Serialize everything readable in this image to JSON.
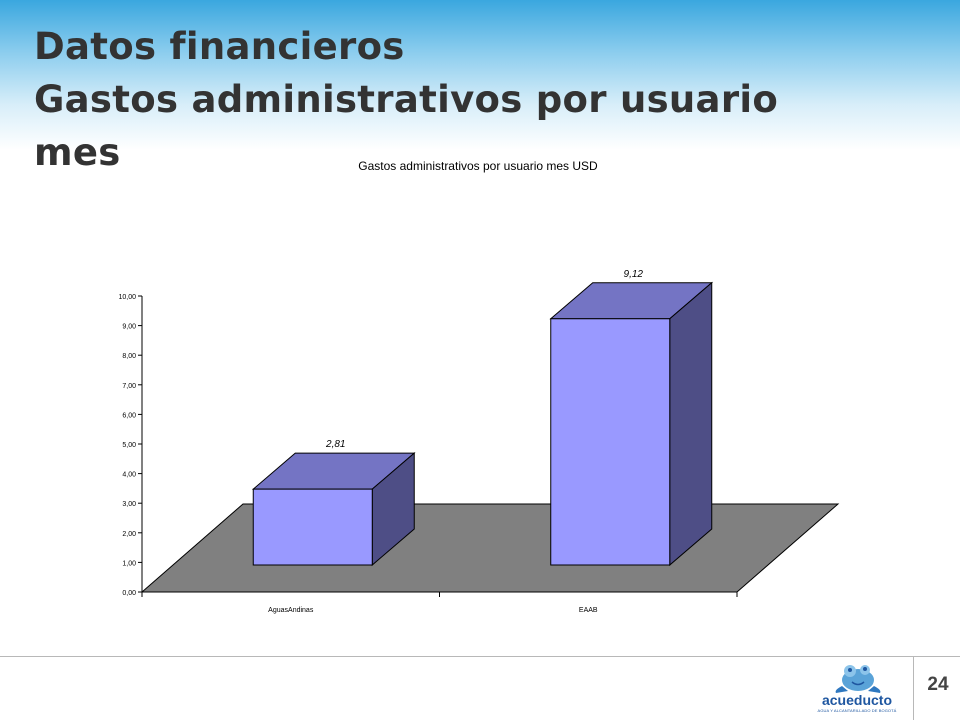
{
  "slide": {
    "title_line1": "Datos financieros",
    "title_line2": "Gastos administrativos por usuario",
    "title_line3": "mes",
    "page_number": "24"
  },
  "logo": {
    "word": "acueducto",
    "tagline": "AGUA Y ALCANTARILLADO DE BOGOTÁ"
  },
  "colors": {
    "bar_front": "#9999ff",
    "bar_top": "#7474c4",
    "bar_side": "#4e4e86",
    "floor": "#808080",
    "header_blue": "#3aa7df"
  },
  "chart_data": {
    "type": "bar",
    "three_d": true,
    "title": "Gastos administrativos por usuario mes USD",
    "categories": [
      "AguasAndinas",
      "EAAB"
    ],
    "values": [
      2.81,
      9.12
    ],
    "data_labels": [
      "2,81",
      "9,12"
    ],
    "ylim": [
      0,
      10
    ],
    "yticks": [
      "0,00",
      "1,00",
      "2,00",
      "3,00",
      "4,00",
      "5,00",
      "6,00",
      "7,00",
      "8,00",
      "9,00",
      "10,00"
    ],
    "xlabel": "",
    "ylabel": "",
    "grid": false,
    "legend": "none"
  }
}
